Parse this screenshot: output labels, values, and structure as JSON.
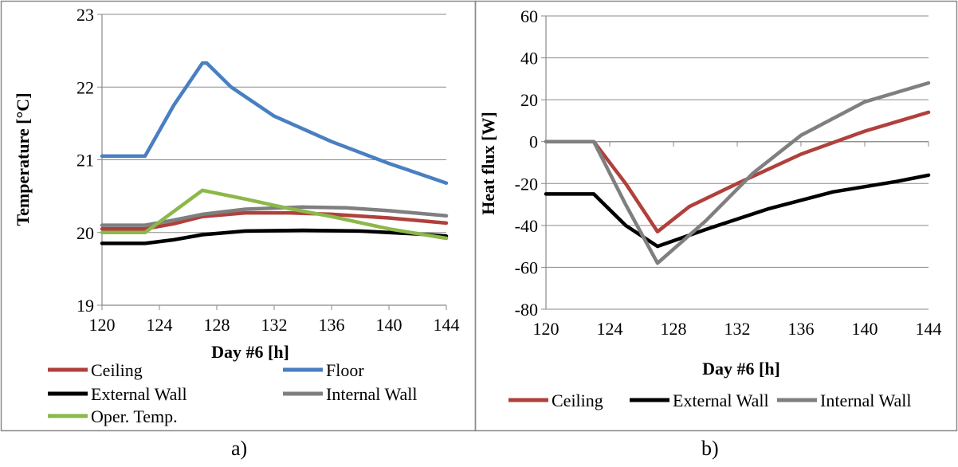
{
  "captions": {
    "a": "a)",
    "b": "b)"
  },
  "colors": {
    "ceiling": "#b0403c",
    "floor": "#4a7fc1",
    "external_wall": "#000000",
    "internal_wall": "#7f7f7f",
    "oper_temp": "#8cb84a"
  },
  "chart_data": [
    {
      "type": "line",
      "title": "",
      "xlabel": "Day #6 [h]",
      "ylabel": "Temperature [°C]",
      "xlim": [
        120,
        144
      ],
      "ylim": [
        19,
        23
      ],
      "x_ticks": [
        "120",
        "124",
        "128",
        "132",
        "136",
        "140",
        "144"
      ],
      "y_ticks": [
        "19",
        "20",
        "21",
        "22",
        "23"
      ],
      "grid": "horizontal",
      "legend": "bottom",
      "series": [
        {
          "name": "Ceiling",
          "color": "#b0403c",
          "points": [
            [
              120,
              20.05
            ],
            [
              123,
              20.05
            ],
            [
              125,
              20.12
            ],
            [
              127,
              20.22
            ],
            [
              130,
              20.27
            ],
            [
              133,
              20.27
            ],
            [
              136,
              20.25
            ],
            [
              140,
              20.2
            ],
            [
              144,
              20.13
            ]
          ]
        },
        {
          "name": "Floor",
          "color": "#4a7fc1",
          "points": [
            [
              120,
              21.05
            ],
            [
              123,
              21.05
            ],
            [
              125,
              21.75
            ],
            [
              127,
              22.33
            ],
            [
              127.3,
              22.33
            ],
            [
              129,
              22.0
            ],
            [
              132,
              21.6
            ],
            [
              136,
              21.25
            ],
            [
              140,
              20.95
            ],
            [
              144,
              20.68
            ]
          ]
        },
        {
          "name": "External Wall",
          "color": "#000000",
          "points": [
            [
              120,
              19.85
            ],
            [
              123,
              19.85
            ],
            [
              125,
              19.9
            ],
            [
              127,
              19.97
            ],
            [
              130,
              20.02
            ],
            [
              134,
              20.03
            ],
            [
              138,
              20.02
            ],
            [
              142,
              19.98
            ],
            [
              144,
              19.95
            ]
          ]
        },
        {
          "name": "Internal Wall",
          "color": "#7f7f7f",
          "points": [
            [
              120,
              20.1
            ],
            [
              123,
              20.1
            ],
            [
              125,
              20.17
            ],
            [
              127,
              20.25
            ],
            [
              130,
              20.32
            ],
            [
              134,
              20.35
            ],
            [
              137,
              20.34
            ],
            [
              140,
              20.3
            ],
            [
              144,
              20.23
            ]
          ]
        },
        {
          "name": "Oper. Temp.",
          "color": "#8cb84a",
          "points": [
            [
              120,
              20.0
            ],
            [
              123,
              20.0
            ],
            [
              127,
              20.58
            ],
            [
              130,
              20.46
            ],
            [
              133,
              20.33
            ],
            [
              136,
              20.22
            ],
            [
              140,
              20.05
            ],
            [
              144,
              19.92
            ]
          ]
        }
      ]
    },
    {
      "type": "line",
      "title": "",
      "xlabel": "Day #6 [h]",
      "ylabel": "Heat flux [W]",
      "xlim": [
        120,
        144
      ],
      "ylim": [
        -80,
        60
      ],
      "x_ticks": [
        "120",
        "124",
        "128",
        "132",
        "136",
        "140",
        "144"
      ],
      "y_ticks": [
        "-80",
        "-60",
        "-40",
        "-20",
        "0",
        "20",
        "40",
        "60"
      ],
      "grid": "horizontal",
      "legend": "bottom",
      "series": [
        {
          "name": "Ceiling",
          "color": "#b0403c",
          "points": [
            [
              120,
              0
            ],
            [
              123,
              0
            ],
            [
              125,
              -20
            ],
            [
              127,
              -43
            ],
            [
              129,
              -31
            ],
            [
              132,
              -20
            ],
            [
              136,
              -6
            ],
            [
              140,
              5
            ],
            [
              144,
              14
            ]
          ]
        },
        {
          "name": "External Wall",
          "color": "#000000",
          "points": [
            [
              120,
              -25
            ],
            [
              123,
              -25
            ],
            [
              125,
              -40
            ],
            [
              127,
              -50
            ],
            [
              130,
              -42
            ],
            [
              134,
              -32
            ],
            [
              138,
              -24
            ],
            [
              142,
              -19
            ],
            [
              144,
              -16
            ]
          ]
        },
        {
          "name": "Internal Wall",
          "color": "#7f7f7f",
          "points": [
            [
              120,
              0
            ],
            [
              123,
              0
            ],
            [
              125,
              -30
            ],
            [
              127,
              -58
            ],
            [
              130,
              -38
            ],
            [
              133,
              -15
            ],
            [
              136,
              3
            ],
            [
              140,
              19
            ],
            [
              144,
              28
            ]
          ]
        }
      ]
    }
  ]
}
